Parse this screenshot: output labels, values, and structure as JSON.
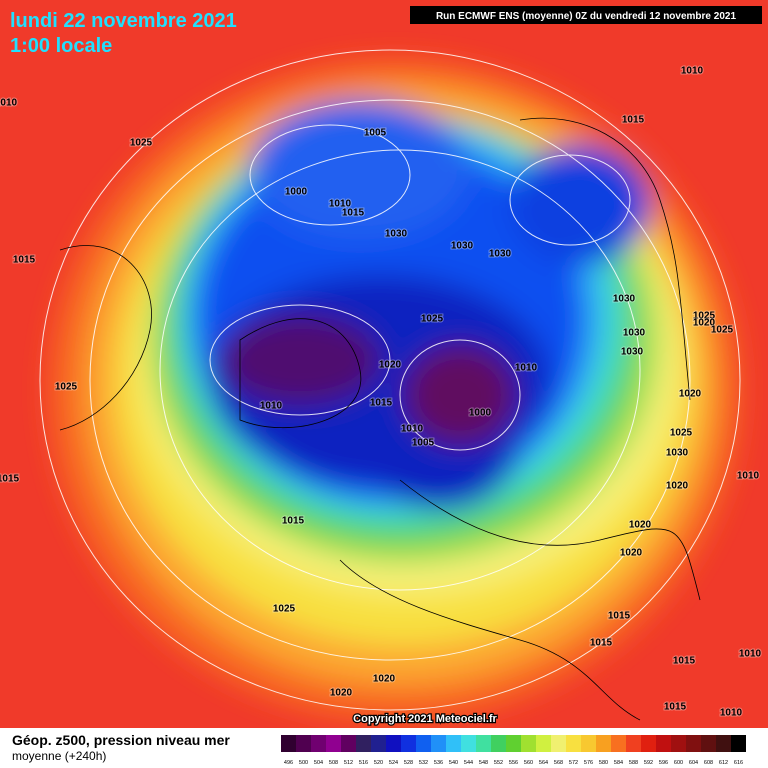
{
  "header": {
    "date": "lundi 22 novembre 2021",
    "time": "1:00 locale",
    "run": "Run ECMWF ENS (moyenne) 0Z du vendredi 12 novembre 2021"
  },
  "map": {
    "copyright": "Copyright 2021 Meteociel.fr",
    "isobar_labels": [
      1010,
      1010,
      1015,
      1005,
      1025,
      1000,
      1010,
      1015,
      1030,
      1030,
      1030,
      1015,
      1030,
      1025,
      1025,
      1020,
      1025,
      1030,
      1030,
      1020,
      1010,
      1025,
      1010,
      1015,
      1000,
      1020,
      1010,
      1025,
      1005,
      1030,
      1015,
      1010,
      1020,
      1015,
      1020,
      1020,
      1025,
      1015,
      1015,
      1015,
      1010,
      1020,
      1020,
      1015,
      1010
    ]
  },
  "legend": {
    "title": "Géop. z500, pression niveau mer",
    "subtitle": "moyenne  (+240h)",
    "scale": [
      496,
      500,
      504,
      508,
      512,
      516,
      520,
      524,
      528,
      532,
      536,
      540,
      544,
      548,
      552,
      556,
      560,
      564,
      568,
      572,
      576,
      580,
      584,
      588,
      592,
      596,
      600,
      604,
      608,
      612,
      616
    ]
  }
}
